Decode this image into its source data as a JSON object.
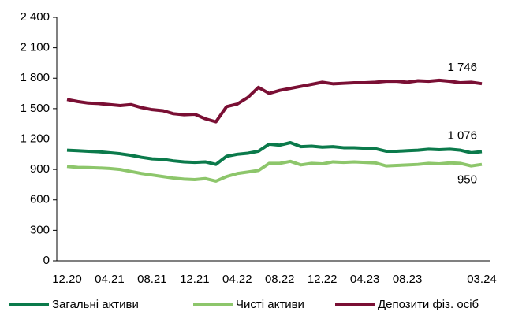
{
  "chart_data": {
    "type": "line",
    "categories": [
      "12.20",
      null,
      null,
      null,
      "04.21",
      null,
      null,
      null,
      "08.21",
      null,
      null,
      null,
      "12.21",
      null,
      null,
      null,
      "04.22",
      null,
      null,
      null,
      "08.22",
      null,
      null,
      null,
      "12.22",
      null,
      null,
      null,
      "04.23",
      null,
      null,
      null,
      "08.23",
      null,
      null,
      null,
      null,
      null,
      null,
      "03.24"
    ],
    "series": [
      {
        "name": "Загальні активи",
        "color": "#0b7a4b",
        "values": [
          1090,
          1085,
          1080,
          1075,
          1065,
          1055,
          1040,
          1020,
          1005,
          1000,
          985,
          975,
          970,
          975,
          950,
          1030,
          1050,
          1060,
          1080,
          1150,
          1140,
          1165,
          1125,
          1130,
          1120,
          1125,
          1115,
          1115,
          1110,
          1105,
          1080,
          1080,
          1085,
          1090,
          1100,
          1095,
          1100,
          1090,
          1065,
          1076
        ],
        "value_labels": [
          null,
          null,
          null,
          null,
          null,
          null,
          null,
          null,
          null,
          null,
          null,
          null,
          null,
          null,
          null,
          null,
          null,
          null,
          null,
          null,
          null,
          null,
          null,
          null,
          null,
          null,
          null,
          null,
          null,
          null,
          null,
          null,
          null,
          null,
          null,
          null,
          null,
          null,
          null,
          "1 076"
        ]
      },
      {
        "name": "Чисті активи",
        "color": "#8dc66b",
        "values": [
          930,
          920,
          918,
          915,
          910,
          900,
          880,
          860,
          845,
          830,
          815,
          805,
          800,
          810,
          785,
          830,
          860,
          875,
          890,
          960,
          960,
          980,
          945,
          960,
          955,
          975,
          970,
          975,
          970,
          965,
          935,
          940,
          945,
          950,
          960,
          955,
          965,
          960,
          935,
          950
        ],
        "value_labels": [
          null,
          null,
          null,
          null,
          null,
          null,
          null,
          null,
          null,
          null,
          null,
          null,
          null,
          null,
          null,
          null,
          null,
          null,
          null,
          null,
          null,
          null,
          null,
          null,
          null,
          null,
          null,
          null,
          null,
          null,
          null,
          null,
          null,
          null,
          null,
          null,
          null,
          null,
          null,
          "950"
        ]
      },
      {
        "name": "Депозити фіз. осіб",
        "color": "#7a0f34",
        "values": [
          1590,
          1570,
          1555,
          1550,
          1540,
          1530,
          1540,
          1510,
          1490,
          1480,
          1450,
          1440,
          1445,
          1400,
          1370,
          1520,
          1545,
          1610,
          1710,
          1650,
          1680,
          1700,
          1720,
          1740,
          1760,
          1745,
          1750,
          1755,
          1755,
          1760,
          1770,
          1770,
          1760,
          1775,
          1770,
          1780,
          1770,
          1755,
          1760,
          1746
        ],
        "value_labels": [
          null,
          null,
          null,
          null,
          null,
          null,
          null,
          null,
          null,
          null,
          null,
          null,
          null,
          null,
          null,
          null,
          null,
          null,
          null,
          null,
          null,
          null,
          null,
          null,
          null,
          null,
          null,
          null,
          null,
          null,
          null,
          null,
          null,
          null,
          null,
          null,
          null,
          null,
          null,
          "1 746"
        ]
      }
    ],
    "ylim": [
      0,
      2400
    ],
    "yticks": [
      0,
      300,
      600,
      900,
      {
        "value": 1200,
        "label": "1 200"
      },
      {
        "value": 1500,
        "label": "1 500"
      },
      {
        "value": 1800,
        "label": "1 800"
      },
      {
        "value": 2100,
        "label": "2 100"
      },
      {
        "value": 2400,
        "label": "2 400"
      }
    ],
    "grid": false,
    "legend": "bottom"
  }
}
